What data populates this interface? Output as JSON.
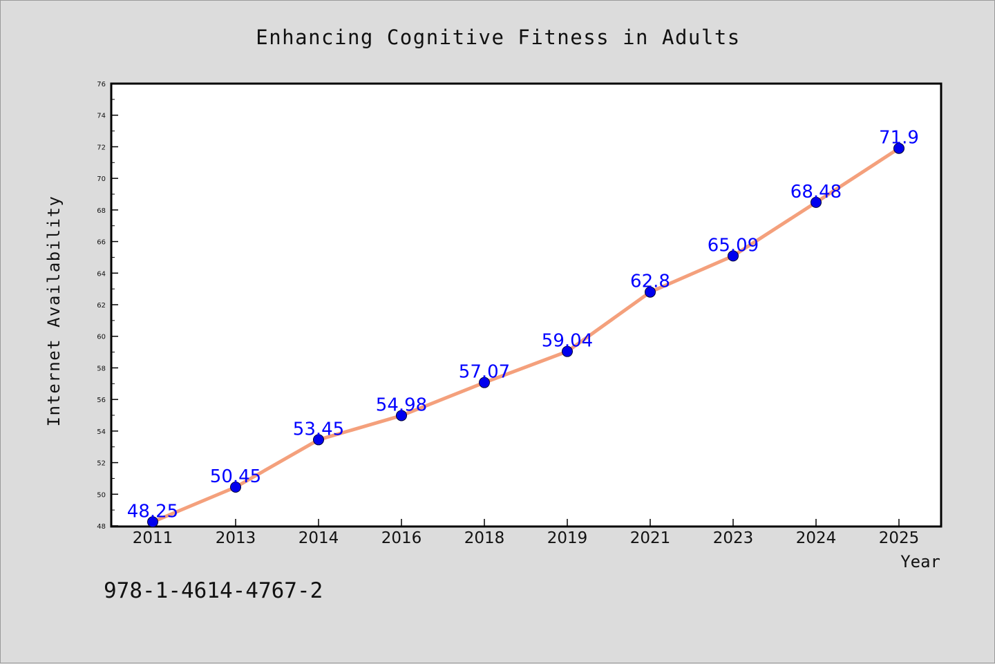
{
  "chart_data": {
    "type": "line",
    "title": "Enhancing Cognitive Fitness in Adults",
    "xlabel": "Year",
    "ylabel": "Internet Availability",
    "categories": [
      "2011",
      "2013",
      "2014",
      "2016",
      "2018",
      "2019",
      "2021",
      "2023",
      "2024",
      "2025"
    ],
    "series": [
      {
        "values": [
          48.25,
          50.45,
          53.45,
          54.98,
          57.07,
          59.04,
          62.8,
          65.09,
          68.48,
          71.9
        ],
        "data_labels": [
          "48.25",
          "50.45",
          "53.45",
          "54.98",
          "57.07",
          "59.04",
          "62.8",
          "65.09",
          "68.48",
          "71.9"
        ],
        "line_color": "#f4a07c",
        "marker_color": "#0000ee"
      }
    ],
    "ylim": [
      48,
      76
    ],
    "yticks": [
      "48",
      "50",
      "52",
      "54",
      "56",
      "58",
      "60",
      "62",
      "64",
      "66",
      "68",
      "70",
      "72",
      "74",
      "76"
    ],
    "grid": false,
    "legend": "none",
    "annotation": "978-1-4614-4767-2",
    "colors": {
      "background": "#dcdcdc",
      "plot_area": "#ffffff",
      "line": "#f4a07c",
      "marker": "#0000ee",
      "label_text": "#0000ff"
    }
  }
}
